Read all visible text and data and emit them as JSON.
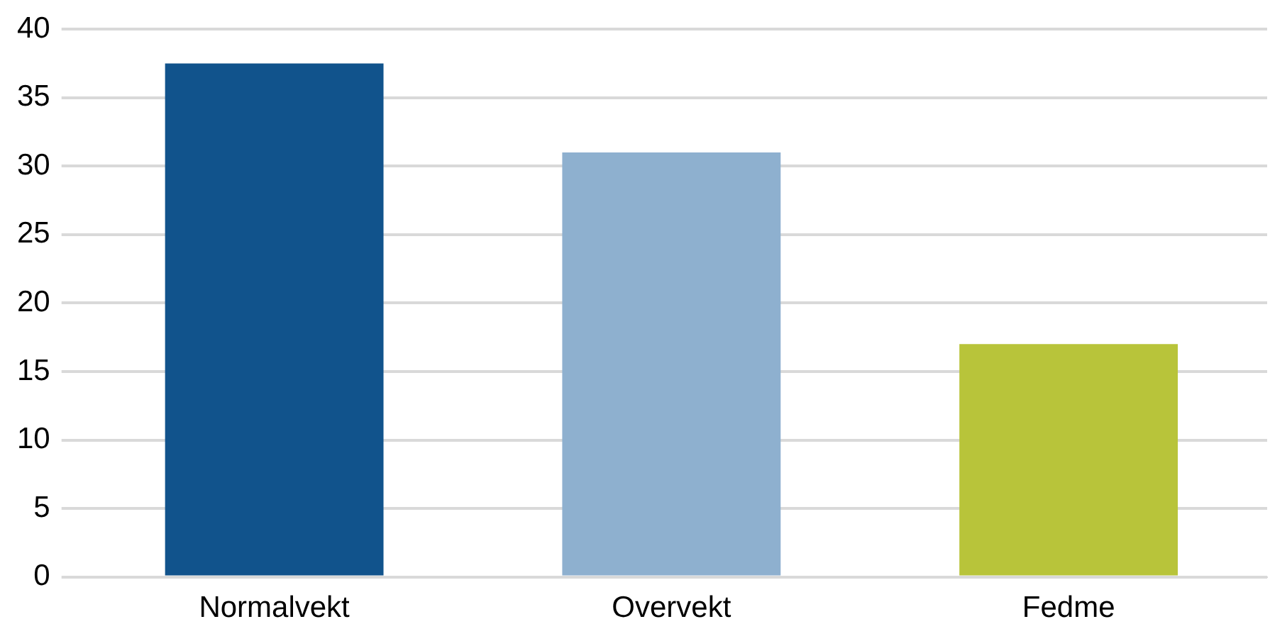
{
  "chart_data": {
    "type": "bar",
    "categories": [
      "Normalvekt",
      "Overvekt",
      "Fedme"
    ],
    "values": [
      37.5,
      31,
      17
    ],
    "colors": [
      "#11538c",
      "#8eb0cf",
      "#b8c43a"
    ],
    "ylim": [
      0,
      40
    ],
    "yticks": [
      0,
      5,
      10,
      15,
      20,
      25,
      30,
      35,
      40
    ],
    "grid": "y",
    "legend": false
  }
}
